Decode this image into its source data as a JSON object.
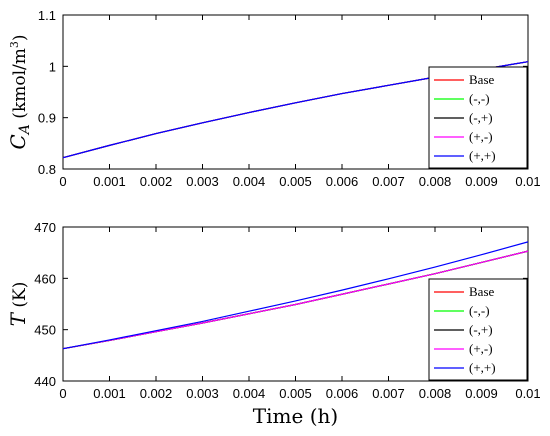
{
  "chart_data": [
    {
      "type": "line",
      "ylabel_parts": {
        "c": "C",
        "sub": "A",
        "units": " (kmol/m",
        "sup": "3",
        "close": ")"
      },
      "xlim": [
        0,
        0.01
      ],
      "ylim": [
        0.8,
        1.1
      ],
      "xticks": [
        0,
        0.001,
        0.002,
        0.003,
        0.004,
        0.005,
        0.006,
        0.007,
        0.008,
        0.009,
        0.01
      ],
      "xtick_labels": [
        "0",
        "0.001",
        "0.002",
        "0.003",
        "0.004",
        "0.005",
        "0.006",
        "0.007",
        "0.008",
        "0.009",
        "0.01"
      ],
      "yticks": [
        0.8,
        0.9,
        1.0,
        1.1
      ],
      "ytick_labels": [
        "0.8",
        "0.9",
        "1",
        "1.1"
      ],
      "grid": false,
      "legend_position": "bottom-right",
      "x": [
        0,
        0.001,
        0.002,
        0.003,
        0.004,
        0.005,
        0.006,
        0.007,
        0.008,
        0.009,
        0.01
      ],
      "series": [
        {
          "name": "Base",
          "color": "#ff0000",
          "values": [
            0.822,
            0.846,
            0.869,
            0.89,
            0.91,
            0.929,
            0.947,
            0.963,
            0.979,
            0.994,
            1.009
          ]
        },
        {
          "name": "(-,-)",
          "color": "#00ff00",
          "values": [
            0.822,
            0.846,
            0.869,
            0.89,
            0.91,
            0.929,
            0.947,
            0.963,
            0.979,
            0.994,
            1.009
          ]
        },
        {
          "name": "(-,+)",
          "color": "#000000",
          "values": [
            0.822,
            0.846,
            0.869,
            0.89,
            0.91,
            0.929,
            0.947,
            0.963,
            0.979,
            0.994,
            1.009
          ]
        },
        {
          "name": "(+,-)",
          "color": "#ff00ff",
          "values": [
            0.822,
            0.846,
            0.869,
            0.89,
            0.91,
            0.929,
            0.947,
            0.963,
            0.979,
            0.994,
            1.009
          ]
        },
        {
          "name": "(+,+)",
          "color": "#0000ff",
          "values": [
            0.822,
            0.846,
            0.869,
            0.89,
            0.91,
            0.929,
            0.947,
            0.963,
            0.979,
            0.994,
            1.009
          ]
        }
      ]
    },
    {
      "type": "line",
      "ylabel_parts": {
        "c": "T",
        "sub": "",
        "units": " (K)",
        "sup": "",
        "close": ""
      },
      "xlabel": "Time (h)",
      "xlim": [
        0,
        0.01
      ],
      "ylim": [
        440,
        470
      ],
      "xticks": [
        0,
        0.001,
        0.002,
        0.003,
        0.004,
        0.005,
        0.006,
        0.007,
        0.008,
        0.009,
        0.01
      ],
      "xtick_labels": [
        "0",
        "0.001",
        "0.002",
        "0.003",
        "0.004",
        "0.005",
        "0.006",
        "0.007",
        "0.008",
        "0.009",
        "0.01"
      ],
      "yticks": [
        440,
        450,
        460,
        470
      ],
      "ytick_labels": [
        "440",
        "450",
        "460",
        "470"
      ],
      "grid": false,
      "legend_position": "bottom-right",
      "x": [
        0,
        0.001,
        0.002,
        0.003,
        0.004,
        0.005,
        0.006,
        0.007,
        0.008,
        0.009,
        0.01
      ],
      "series": [
        {
          "name": "Base",
          "color": "#ff0000",
          "values": [
            446.3,
            447.9,
            449.6,
            451.3,
            453.1,
            454.9,
            456.9,
            458.9,
            460.9,
            463.1,
            465.3
          ]
        },
        {
          "name": "(-,-)",
          "color": "#00ff00",
          "values": [
            446.3,
            447.9,
            449.6,
            451.3,
            453.1,
            454.9,
            456.9,
            458.9,
            460.9,
            463.1,
            465.3
          ]
        },
        {
          "name": "(-,+)",
          "color": "#000000",
          "values": [
            446.3,
            447.9,
            449.6,
            451.3,
            453.1,
            454.9,
            456.9,
            458.9,
            460.9,
            463.1,
            465.3
          ]
        },
        {
          "name": "(+,-)",
          "color": "#ff00ff",
          "values": [
            446.3,
            447.9,
            449.6,
            451.3,
            453.1,
            454.9,
            456.9,
            458.9,
            460.9,
            463.1,
            465.3
          ]
        },
        {
          "name": "(+,+)",
          "color": "#0000ff",
          "values": [
            446.3,
            448.0,
            449.8,
            451.6,
            453.6,
            455.6,
            457.7,
            459.9,
            462.2,
            464.6,
            467.1
          ]
        }
      ]
    }
  ]
}
